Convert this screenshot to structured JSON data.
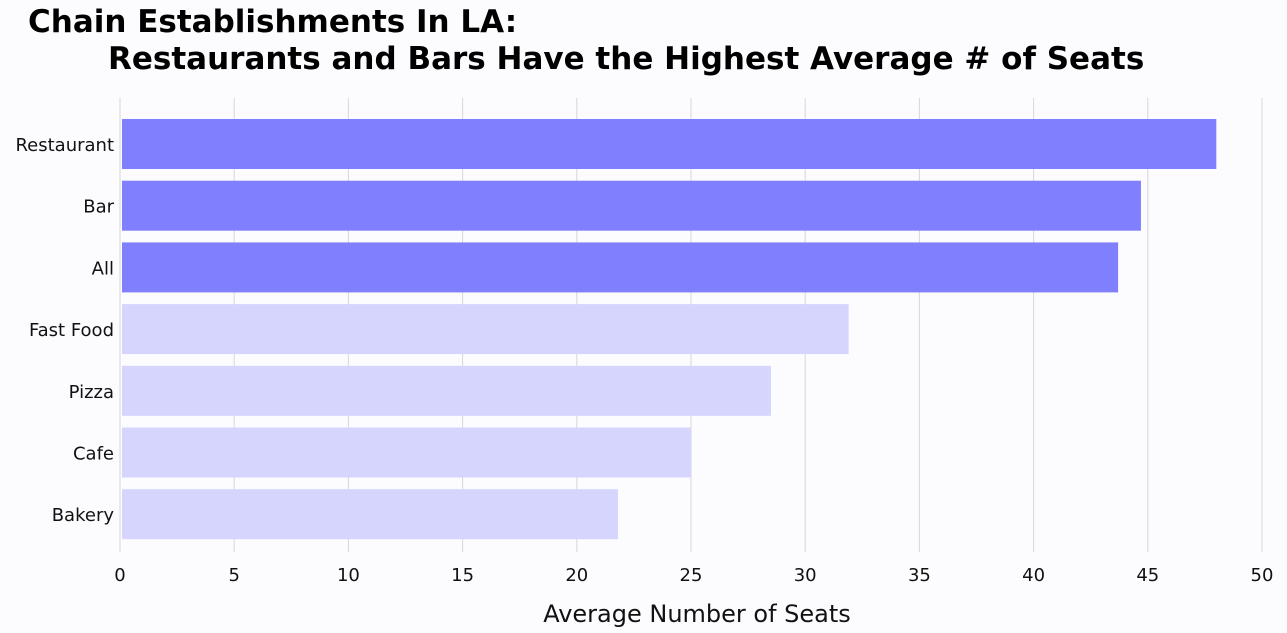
{
  "chart_data": {
    "type": "bar",
    "orientation": "horizontal",
    "title_line1": "Chain Establishments In LA:",
    "title_line2": "Restaurants and Bars Have the Highest Average # of Seats",
    "xlabel": "Average Number of Seats",
    "ylabel": "",
    "categories": [
      "Restaurant",
      "Bar",
      "All",
      "Fast Food",
      "Pizza",
      "Cafe",
      "Bakery"
    ],
    "values": [
      48.0,
      44.7,
      43.7,
      31.9,
      28.5,
      25.0,
      21.8
    ],
    "highlight": [
      true,
      true,
      true,
      false,
      false,
      false,
      false
    ],
    "xlim": [
      0,
      51
    ],
    "xticks": [
      0,
      5,
      10,
      15,
      20,
      25,
      30,
      35,
      40,
      45,
      50
    ],
    "grid": "vertical",
    "colors": {
      "highlight": "#8080ff",
      "normal": "#d5d5fd",
      "grid": "#d6d6de",
      "background": "#fcfcfe"
    }
  }
}
